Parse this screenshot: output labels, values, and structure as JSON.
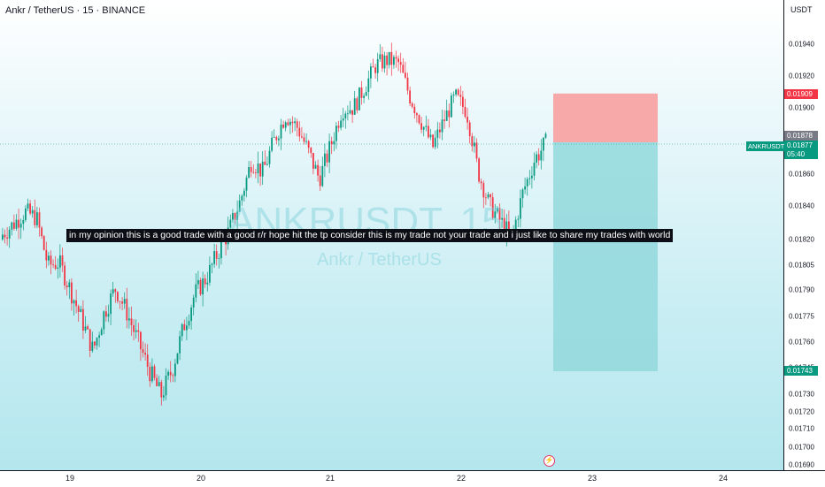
{
  "header": {
    "title": "Ankr / TetherUS · 15 · BINANCE"
  },
  "watermark": {
    "symbol": "ANKRUSDT, 15",
    "name": "Ankr / TetherUS"
  },
  "annotation": {
    "text": "in my opinion this is a good trade with a good r/r hope hit the tp consider this is my trade not your trade and i just like to share my trades with world"
  },
  "scale": {
    "currency": "USDT",
    "ticks": [
      "0.01940",
      "0.01920",
      "0.01900",
      "0.01880",
      "0.01860",
      "0.01840",
      "0.01820",
      "0.01805",
      "0.01790",
      "0.01775",
      "0.01760",
      "0.01745",
      "0.01730",
      "0.01720",
      "0.01710",
      "0.01700",
      "0.01690"
    ]
  },
  "tags": {
    "stop": "0.01909",
    "entry": "0.01878",
    "last": "0.01877",
    "countdown": "05:40",
    "target": "0.01743",
    "ticker": "ANKRUSDT"
  },
  "xaxis": {
    "labels": [
      "19",
      "20",
      "21",
      "22",
      "23",
      "24"
    ]
  },
  "colors": {
    "up": "#089981",
    "down": "#f23645",
    "stop_zone": "#f7a9a9",
    "target_zone": "#92d8dc"
  },
  "chart_data": {
    "type": "candlestick",
    "symbol": "ANKRUSDT",
    "interval": "15",
    "exchange": "BINANCE",
    "x_labels": [
      "19",
      "20",
      "21",
      "22",
      "23",
      "24"
    ],
    "y_ticks": [
      0.0194,
      0.0192,
      0.019,
      0.0188,
      0.0186,
      0.0184,
      0.0182,
      0.01805,
      0.0179,
      0.01775,
      0.0176,
      0.01745,
      0.0173,
      0.0172,
      0.0171,
      0.017,
      0.0169
    ],
    "price_path": [
      [
        0.0182,
        0.01826
      ],
      [
        0.01828,
        0.01831
      ],
      [
        0.01835,
        0.01838
      ],
      [
        0.01834,
        0.01832
      ],
      [
        0.01812,
        0.01798
      ],
      [
        0.01805,
        0.01808
      ],
      [
        0.01795,
        0.01785
      ],
      [
        0.01778,
        0.01768
      ],
      [
        0.0176,
        0.0175
      ],
      [
        0.01772,
        0.01783
      ],
      [
        0.0179,
        0.01792
      ],
      [
        0.01782,
        0.01772
      ],
      [
        0.01765,
        0.01755
      ],
      [
        0.01748,
        0.01738
      ],
      [
        0.01728,
        0.0173
      ],
      [
        0.01738,
        0.0175
      ],
      [
        0.0176,
        0.01778
      ],
      [
        0.01784,
        0.01792
      ],
      [
        0.01792,
        0.01802
      ],
      [
        0.01808,
        0.01816
      ],
      [
        0.01822,
        0.01828
      ],
      [
        0.01836,
        0.0185
      ],
      [
        0.01864,
        0.01872
      ],
      [
        0.01866,
        0.01856
      ],
      [
        0.01874,
        0.01884
      ],
      [
        0.01892,
        0.01898
      ],
      [
        0.01894,
        0.01882
      ],
      [
        0.01876,
        0.0187
      ],
      [
        0.01856,
        0.01858
      ],
      [
        0.0187,
        0.01882
      ],
      [
        0.01894,
        0.01904
      ],
      [
        0.01902,
        0.01898
      ],
      [
        0.01908,
        0.01918
      ],
      [
        0.01924,
        0.0193
      ],
      [
        0.01932,
        0.01928
      ],
      [
        0.01934,
        0.01922
      ],
      [
        0.01912,
        0.01902
      ],
      [
        0.01896,
        0.01886
      ],
      [
        0.01872,
        0.01878
      ],
      [
        0.01888,
        0.01896
      ],
      [
        0.01904,
        0.0191
      ],
      [
        0.01902,
        0.01894
      ],
      [
        0.0187,
        0.01854
      ],
      [
        0.01846,
        0.01836
      ],
      [
        0.01828,
        0.01834
      ],
      [
        0.01818,
        0.01824
      ],
      [
        0.01842,
        0.01856
      ],
      [
        0.01864,
        0.01872
      ],
      [
        0.01878,
        0.01877
      ]
    ],
    "lows": {
      "time_index": 0.45,
      "value": 0.0171
    },
    "highs": {
      "time_index": 0.77,
      "value": 0.01937
    },
    "position": {
      "side": "short",
      "entry": 0.01878,
      "stop": 0.01909,
      "target": 0.01743
    },
    "last_price": 0.01877,
    "ylim": [
      0.01685,
      0.01955
    ]
  }
}
